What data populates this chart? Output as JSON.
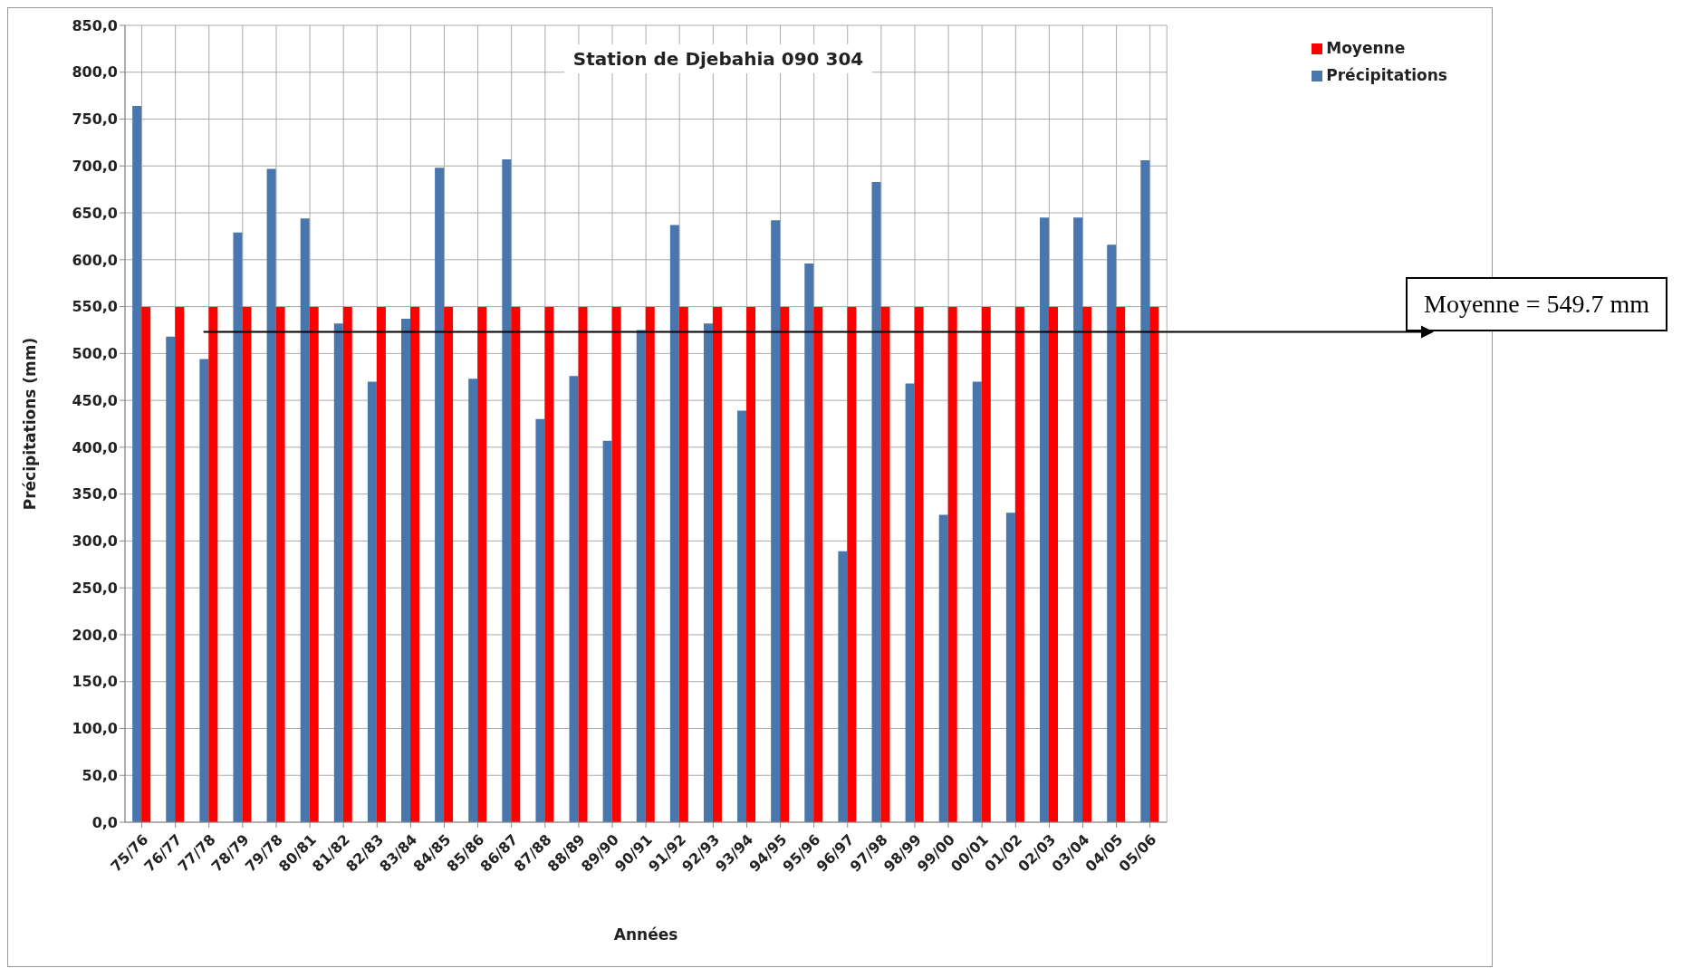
{
  "chart_data": {
    "type": "bar",
    "title": "Station de Djebahia 090 304",
    "xlabel": "Années",
    "ylabel": "Précipitations  (mm)",
    "categories": [
      "75/76",
      "76/77",
      "77/78",
      "78/79",
      "79/78",
      "80/81",
      "81/82",
      "82/83",
      "83/84",
      "84/85",
      "85/86",
      "86/87",
      "87/88",
      "88/89",
      "89/90",
      "90/91",
      "91/92",
      "92/93",
      "93/94",
      "94/95",
      "95/96",
      "96/97",
      "97/98",
      "98/99",
      "99/00",
      "00/01",
      "01/02",
      "02/03",
      "03/04",
      "04/05",
      "05/06"
    ],
    "series": [
      {
        "name": "Précipitations",
        "color": "#4a76ae",
        "values": [
          764,
          518,
          494,
          629,
          697,
          644,
          532,
          470,
          537,
          698,
          473,
          707,
          430,
          476,
          407,
          525,
          637,
          532,
          439,
          642,
          596,
          289,
          683,
          468,
          328,
          470,
          330,
          645,
          645,
          616,
          706
        ]
      },
      {
        "name": "Moyenne",
        "color": "#ff0000",
        "values": [
          549.7,
          549.7,
          549.7,
          549.7,
          549.7,
          549.7,
          549.7,
          549.7,
          549.7,
          549.7,
          549.7,
          549.7,
          549.7,
          549.7,
          549.7,
          549.7,
          549.7,
          549.7,
          549.7,
          549.7,
          549.7,
          549.7,
          549.7,
          549.7,
          549.7,
          549.7,
          549.7,
          549.7,
          549.7,
          549.7,
          549.7
        ]
      }
    ],
    "ylim": [
      0,
      850
    ],
    "yticks": [
      {
        "value": 0,
        "label": "0,0"
      },
      {
        "value": 50,
        "label": "50,0"
      },
      {
        "value": 100,
        "label": "100,0"
      },
      {
        "value": 150,
        "label": "150,0"
      },
      {
        "value": 200,
        "label": "200,0"
      },
      {
        "value": 250,
        "label": "250,0"
      },
      {
        "value": 300,
        "label": "300,0"
      },
      {
        "value": 350,
        "label": "350,0"
      },
      {
        "value": 400,
        "label": "400,0"
      },
      {
        "value": 450,
        "label": "450,0"
      },
      {
        "value": 500,
        "label": "500,0"
      },
      {
        "value": 550,
        "label": "550,0"
      },
      {
        "value": 600,
        "label": "600,0"
      },
      {
        "value": 650,
        "label": "650,0"
      },
      {
        "value": 700,
        "label": "700,0"
      },
      {
        "value": 750,
        "label": "750,0"
      },
      {
        "value": 800,
        "label": "800,0"
      },
      {
        "value": 850,
        "label": "850,0"
      }
    ],
    "grid": true,
    "legend": "top right",
    "annotations": [
      "Moyenne = 549.7 mm"
    ]
  }
}
